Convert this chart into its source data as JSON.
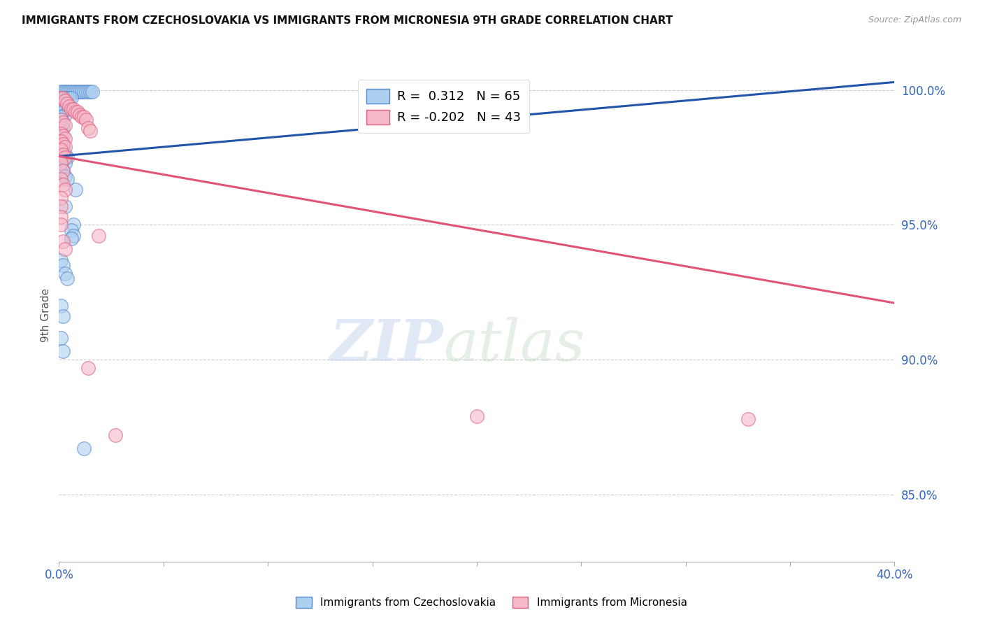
{
  "title": "IMMIGRANTS FROM CZECHOSLOVAKIA VS IMMIGRANTS FROM MICRONESIA 9TH GRADE CORRELATION CHART",
  "source": "Source: ZipAtlas.com",
  "ylabel": "9th Grade",
  "legend_blue_label": "Immigrants from Czechoslovakia",
  "legend_pink_label": "Immigrants from Micronesia",
  "R_blue": 0.312,
  "N_blue": 65,
  "R_pink": -0.202,
  "N_pink": 43,
  "blue_color": "#AED0F0",
  "pink_color": "#F5B8C8",
  "blue_edge_color": "#5588CC",
  "pink_edge_color": "#E06080",
  "blue_line_color": "#2255AA",
  "pink_line_color": "#E05575",
  "xlim": [
    0.0,
    0.4
  ],
  "ylim": [
    0.825,
    1.008
  ],
  "ytick_positions": [
    0.85,
    0.9,
    0.95,
    1.0
  ],
  "ytick_labels": [
    "85.0%",
    "90.0%",
    "95.0%",
    "100.0%"
  ],
  "xtick_positions": [
    0.0,
    0.05,
    0.1,
    0.15,
    0.2,
    0.25,
    0.3,
    0.35,
    0.4
  ],
  "xtick_labels": [
    "0.0%",
    "",
    "",
    "",
    "",
    "",
    "",
    "",
    "40.0%"
  ],
  "grid_color": "#CCCCCC",
  "background_color": "#FFFFFF",
  "blue_line_x0": 0.0,
  "blue_line_y0": 0.9755,
  "blue_line_x1": 0.4,
  "blue_line_y1": 1.003,
  "pink_line_x0": 0.0,
  "pink_line_y0": 0.9755,
  "pink_line_x1": 0.4,
  "pink_line_y1": 0.921,
  "blue_scatter": [
    [
      0.001,
      0.9995
    ],
    [
      0.002,
      0.9995
    ],
    [
      0.003,
      0.9995
    ],
    [
      0.004,
      0.9995
    ],
    [
      0.005,
      0.9995
    ],
    [
      0.006,
      0.9995
    ],
    [
      0.007,
      0.9995
    ],
    [
      0.008,
      0.9995
    ],
    [
      0.009,
      0.9995
    ],
    [
      0.01,
      0.9995
    ],
    [
      0.011,
      0.9995
    ],
    [
      0.012,
      0.9995
    ],
    [
      0.013,
      0.9995
    ],
    [
      0.014,
      0.9995
    ],
    [
      0.015,
      0.9995
    ],
    [
      0.016,
      0.9995
    ],
    [
      0.001,
      0.997
    ],
    [
      0.002,
      0.997
    ],
    [
      0.003,
      0.997
    ],
    [
      0.004,
      0.997
    ],
    [
      0.005,
      0.997
    ],
    [
      0.006,
      0.997
    ],
    [
      0.002,
      0.995
    ],
    [
      0.003,
      0.995
    ],
    [
      0.004,
      0.995
    ],
    [
      0.001,
      0.994
    ],
    [
      0.002,
      0.994
    ],
    [
      0.003,
      0.993
    ],
    [
      0.001,
      0.993
    ],
    [
      0.002,
      0.992
    ],
    [
      0.003,
      0.991
    ],
    [
      0.001,
      0.99
    ],
    [
      0.001,
      0.989
    ],
    [
      0.001,
      0.987
    ],
    [
      0.002,
      0.986
    ],
    [
      0.001,
      0.985
    ],
    [
      0.001,
      0.983
    ],
    [
      0.001,
      0.982
    ],
    [
      0.001,
      0.981
    ],
    [
      0.001,
      0.98
    ],
    [
      0.002,
      0.979
    ],
    [
      0.001,
      0.978
    ],
    [
      0.003,
      0.976
    ],
    [
      0.004,
      0.975
    ],
    [
      0.002,
      0.974
    ],
    [
      0.003,
      0.973
    ],
    [
      0.001,
      0.972
    ],
    [
      0.002,
      0.97
    ],
    [
      0.003,
      0.968
    ],
    [
      0.004,
      0.967
    ],
    [
      0.008,
      0.963
    ],
    [
      0.003,
      0.957
    ],
    [
      0.007,
      0.95
    ],
    [
      0.006,
      0.948
    ],
    [
      0.007,
      0.946
    ],
    [
      0.006,
      0.945
    ],
    [
      0.001,
      0.937
    ],
    [
      0.002,
      0.935
    ],
    [
      0.003,
      0.932
    ],
    [
      0.004,
      0.93
    ],
    [
      0.001,
      0.92
    ],
    [
      0.002,
      0.916
    ],
    [
      0.001,
      0.908
    ],
    [
      0.002,
      0.903
    ],
    [
      0.012,
      0.867
    ]
  ],
  "pink_scatter": [
    [
      0.001,
      0.997
    ],
    [
      0.002,
      0.997
    ],
    [
      0.003,
      0.996
    ],
    [
      0.004,
      0.995
    ],
    [
      0.005,
      0.994
    ],
    [
      0.006,
      0.993
    ],
    [
      0.007,
      0.993
    ],
    [
      0.008,
      0.992
    ],
    [
      0.009,
      0.992
    ],
    [
      0.01,
      0.991
    ],
    [
      0.011,
      0.99
    ],
    [
      0.012,
      0.99
    ],
    [
      0.013,
      0.989
    ],
    [
      0.001,
      0.989
    ],
    [
      0.002,
      0.988
    ],
    [
      0.003,
      0.987
    ],
    [
      0.014,
      0.986
    ],
    [
      0.015,
      0.985
    ],
    [
      0.001,
      0.984
    ],
    [
      0.002,
      0.983
    ],
    [
      0.003,
      0.982
    ],
    [
      0.001,
      0.981
    ],
    [
      0.002,
      0.98
    ],
    [
      0.003,
      0.979
    ],
    [
      0.001,
      0.978
    ],
    [
      0.002,
      0.976
    ],
    [
      0.003,
      0.975
    ],
    [
      0.001,
      0.973
    ],
    [
      0.002,
      0.97
    ],
    [
      0.001,
      0.967
    ],
    [
      0.002,
      0.965
    ],
    [
      0.003,
      0.963
    ],
    [
      0.001,
      0.96
    ],
    [
      0.001,
      0.957
    ],
    [
      0.001,
      0.953
    ],
    [
      0.001,
      0.95
    ],
    [
      0.019,
      0.946
    ],
    [
      0.002,
      0.944
    ],
    [
      0.003,
      0.941
    ],
    [
      0.014,
      0.897
    ],
    [
      0.027,
      0.872
    ],
    [
      0.2,
      0.879
    ],
    [
      0.33,
      0.878
    ]
  ]
}
